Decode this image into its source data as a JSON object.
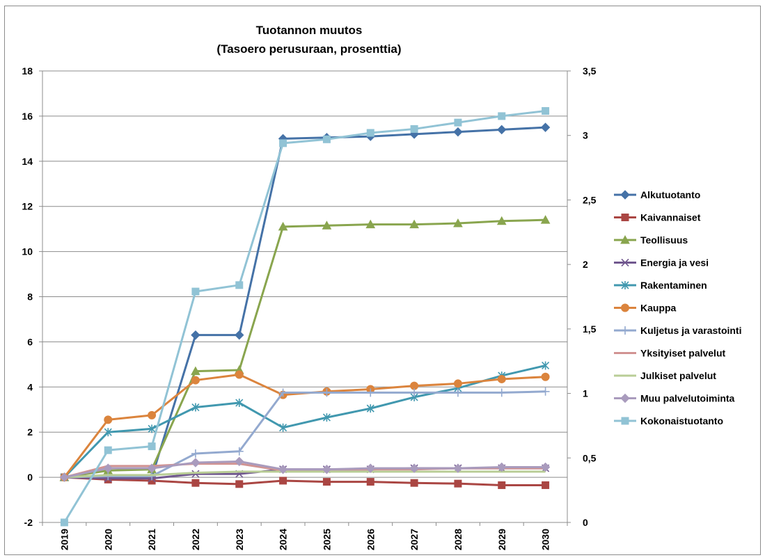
{
  "chart_data": {
    "type": "line",
    "title": "Tuotannon muutos",
    "subtitle": "(Tasoero perusuraan, prosenttia)",
    "xlabel": "",
    "ylabel": "",
    "y2label": "",
    "categories": [
      "2019",
      "2020",
      "2021",
      "2022",
      "2023",
      "2024",
      "2025",
      "2026",
      "2027",
      "2028",
      "2029",
      "2030"
    ],
    "ylim": [
      -2,
      18
    ],
    "yticks": [
      -2,
      0,
      2,
      4,
      6,
      8,
      10,
      12,
      14,
      16,
      18
    ],
    "y2lim": [
      0,
      3.5
    ],
    "y2ticks": [
      0,
      0.5,
      1,
      1.5,
      2,
      2.5,
      3,
      3.5
    ],
    "y2tick_labels": [
      "0",
      "0,5",
      "1",
      "1,5",
      "2",
      "2,5",
      "3",
      "3,5"
    ],
    "grid": true,
    "legend_position": "right",
    "series": [
      {
        "name": "Alkutuotanto",
        "axis": "left",
        "color": "#4572A7",
        "marker": "diamond",
        "values": [
          0.0,
          -0.05,
          0.0,
          6.3,
          6.3,
          15.0,
          15.05,
          15.1,
          15.2,
          15.3,
          15.4,
          15.5
        ]
      },
      {
        "name": "Kaivannaiset",
        "axis": "left",
        "color": "#AA4643",
        "marker": "square",
        "values": [
          0.0,
          -0.1,
          -0.15,
          -0.25,
          -0.3,
          -0.15,
          -0.2,
          -0.2,
          -0.25,
          -0.28,
          -0.35,
          -0.35
        ]
      },
      {
        "name": "Teollisuus",
        "axis": "left",
        "color": "#89A54E",
        "marker": "triangle",
        "values": [
          0.0,
          0.3,
          0.35,
          4.7,
          4.75,
          11.1,
          11.15,
          11.2,
          11.2,
          11.25,
          11.35,
          11.4
        ]
      },
      {
        "name": "Energia ja vesi",
        "axis": "left",
        "color": "#71588F",
        "marker": "x",
        "values": [
          0.0,
          -0.05,
          -0.05,
          0.15,
          0.15,
          0.35,
          0.35,
          0.35,
          0.4,
          0.4,
          0.4,
          0.4
        ]
      },
      {
        "name": "Rakentaminen",
        "axis": "left",
        "color": "#4198AF",
        "marker": "star",
        "values": [
          0.0,
          2.0,
          2.15,
          3.1,
          3.3,
          2.2,
          2.65,
          3.05,
          3.55,
          3.95,
          4.5,
          4.95
        ]
      },
      {
        "name": "Kauppa",
        "axis": "left",
        "color": "#DB843D",
        "marker": "circle",
        "values": [
          0.0,
          2.55,
          2.75,
          4.3,
          4.55,
          3.65,
          3.8,
          3.9,
          4.05,
          4.15,
          4.35,
          4.45
        ]
      },
      {
        "name": "Kuljetus ja varastointi",
        "axis": "left",
        "color": "#93A9CF",
        "marker": "plus",
        "values": [
          0.0,
          0.05,
          0.05,
          1.05,
          1.15,
          3.75,
          3.75,
          3.75,
          3.75,
          3.75,
          3.75,
          3.8
        ]
      },
      {
        "name": "Yksityiset palvelut",
        "axis": "left",
        "color": "#D19392",
        "marker": "none",
        "values": [
          0.0,
          0.5,
          0.5,
          0.6,
          0.6,
          0.3,
          0.35,
          0.35,
          0.35,
          0.4,
          0.4,
          0.4
        ]
      },
      {
        "name": "Julkiset palvelut",
        "axis": "left",
        "color": "#B9CD96",
        "marker": "none",
        "values": [
          0.0,
          0.1,
          0.1,
          0.2,
          0.25,
          0.25,
          0.25,
          0.25,
          0.25,
          0.25,
          0.25,
          0.25
        ]
      },
      {
        "name": "Muu palvelutoiminta",
        "axis": "left",
        "color": "#A99BBD",
        "marker": "diamond",
        "values": [
          0.0,
          0.4,
          0.4,
          0.65,
          0.7,
          0.35,
          0.35,
          0.4,
          0.4,
          0.4,
          0.45,
          0.45
        ]
      },
      {
        "name": "Kokonaistuotanto",
        "axis": "right",
        "color": "#91C3D5",
        "marker": "square",
        "values": [
          0.0,
          0.56,
          0.59,
          1.79,
          1.84,
          2.94,
          2.97,
          3.02,
          3.05,
          3.1,
          3.15,
          3.19
        ]
      }
    ]
  }
}
